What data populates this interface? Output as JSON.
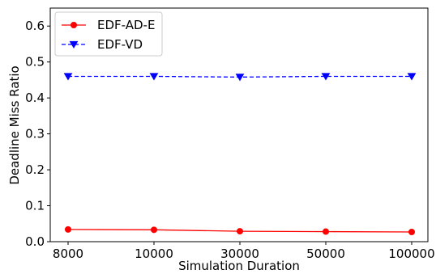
{
  "chart_data": {
    "type": "line",
    "categories": [
      "8000",
      "10000",
      "30000",
      "50000",
      "100000"
    ],
    "xlabel": "Simulation Duration",
    "ylabel": "Deadline Miss Ratio",
    "ylim": [
      0,
      0.65
    ],
    "yticks": [
      0.0,
      0.1,
      0.2,
      0.3,
      0.4,
      0.5,
      0.6
    ],
    "ytick_labels": [
      "0.0",
      "0.1",
      "0.2",
      "0.3",
      "0.4",
      "0.5",
      "0.6"
    ],
    "grid": false,
    "legend_position": "top-left",
    "series": [
      {
        "name": "EDF-AD-E",
        "values": [
          0.034,
          0.033,
          0.029,
          0.028,
          0.027
        ],
        "color": "#ff0000",
        "marker": "circle",
        "line_style": "solid"
      },
      {
        "name": "EDF-VD",
        "values": [
          0.46,
          0.46,
          0.458,
          0.46,
          0.46
        ],
        "color": "#0000ff",
        "marker": "triangle-down",
        "line_style": "dashed"
      }
    ]
  }
}
